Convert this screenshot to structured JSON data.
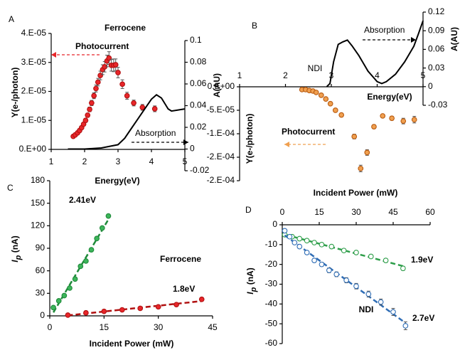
{
  "chart_data": [
    {
      "type": "scatter",
      "panel": "A",
      "title": "Ferrocene",
      "xlabel": "Energy(eV)",
      "ylabel": "Y(e-/photon)",
      "y2label": "A(AU)",
      "xlim": [
        1,
        5
      ],
      "xticks": [
        1,
        2,
        3,
        4,
        5
      ],
      "ylim": [
        0,
        4e-05
      ],
      "yticks": [
        {
          "value": 0,
          "label": "0.E+00"
        },
        {
          "value": 1e-05,
          "label": "1.E-05"
        },
        {
          "value": 2e-05,
          "label": "2.E-05"
        },
        {
          "value": 3e-05,
          "label": "3.E-05"
        },
        {
          "value": 4e-05,
          "label": "4.E-05"
        }
      ],
      "y2lim": [
        -0.02,
        0.1
      ],
      "y2ticks": [
        -0.02,
        0,
        0.02,
        0.04,
        0.06,
        0.08,
        0.1
      ],
      "series": [
        {
          "name": "Photocurrent",
          "style": "markers",
          "color": "#b01010",
          "marker_fill": "#e8262a",
          "x": [
            1.66,
            1.72,
            1.79,
            1.85,
            1.91,
            1.97,
            2.03,
            2.09,
            2.15,
            2.21,
            2.28,
            2.34,
            2.4,
            2.47,
            2.54,
            2.6,
            2.67,
            2.73,
            2.8,
            2.87,
            2.93,
            3.0,
            3.13,
            3.27,
            3.47,
            3.73,
            4.1
          ],
          "values": [
            4.5e-06,
            5e-06,
            5.7e-06,
            6.5e-06,
            7.5e-06,
            8.7e-06,
            1e-05,
            1.18e-05,
            1.38e-05,
            1.6e-05,
            1.85e-05,
            2.1e-05,
            2.32e-05,
            2.55e-05,
            2.75e-05,
            2.85e-05,
            3.05e-05,
            3.15e-05,
            2.9e-05,
            2.9e-05,
            2.92e-05,
            2.65e-05,
            2.25e-05,
            1.85e-05,
            1.6e-05,
            1.45e-05,
            1.4e-05
          ],
          "errors": [
            3e-07,
            3e-07,
            4e-07,
            4e-07,
            5e-07,
            5e-07,
            6e-07,
            7e-07,
            8e-07,
            9e-07,
            1e-06,
            1.2e-06,
            1.3e-06,
            1.5e-06,
            1.7e-06,
            1.8e-06,
            2e-06,
            2.2e-06,
            2e-06,
            2.2e-06,
            2e-06,
            1.8e-06,
            1.5e-06,
            1.2e-06,
            1e-06,
            1e-06,
            1e-06
          ]
        },
        {
          "name": "Absorption",
          "style": "line",
          "axis": "y2",
          "color": "#000000",
          "x": [
            1.5,
            2,
            2.5,
            3,
            3.2,
            3.4,
            3.6,
            3.8,
            4.0,
            4.15,
            4.3,
            4.4,
            4.5,
            4.6,
            4.8,
            5
          ],
          "values": [
            0,
            0,
            0.001,
            0.004,
            0.01,
            0.019,
            0.028,
            0.037,
            0.046,
            0.05,
            0.047,
            0.042,
            0.037,
            0.035,
            0.036,
            0.037
          ]
        }
      ]
    },
    {
      "type": "scatter",
      "panel": "B",
      "title": "NDI",
      "xlabel": "Energy(eV)",
      "ylabel": "Y(e-/photon)",
      "y2label": "A(AU)",
      "xlim": [
        1,
        5
      ],
      "xticks": [
        1,
        2,
        3,
        4,
        5
      ],
      "ylim": [
        -0.0002,
        0
      ],
      "yticks": [
        {
          "value": 0,
          "label": "0.E+00"
        },
        {
          "value": -5e-05,
          "label": "-5.E-05"
        },
        {
          "value": -0.0001,
          "label": "-1.E-04"
        },
        {
          "value": -0.00015,
          "label": "-2.E-04"
        },
        {
          "value": -0.0002,
          "label": "-2.E-04"
        }
      ],
      "y2lim": [
        -0.03,
        0.12
      ],
      "y2ticks": [
        -0.03,
        0,
        0.03,
        0.06,
        0.09,
        0.12
      ],
      "series": [
        {
          "name": "Photocurrent",
          "style": "markers",
          "color": "#b85a10",
          "marker_fill": "#f0a050",
          "x": [
            2.36,
            2.44,
            2.52,
            2.6,
            2.67,
            2.78,
            2.88,
            2.98,
            3.09,
            3.22,
            3.5,
            3.64,
            3.78,
            3.93,
            4.12,
            4.32,
            4.57,
            4.81
          ],
          "values": [
            -6e-06,
            -6e-06,
            -8e-06,
            -9e-06,
            -1.2e-05,
            -1.8e-05,
            -2.6e-05,
            -3.6e-05,
            -5e-05,
            -6e-05,
            -0.000106,
            -0.000174,
            -0.00014,
            -8.5e-05,
            -6.2e-05,
            -6.7e-05,
            -7.3e-05,
            -7e-05
          ],
          "errors": [
            1e-06,
            1e-06,
            1e-06,
            1e-06,
            1.5e-06,
            2e-06,
            2e-06,
            2.5e-06,
            3e-06,
            3e-06,
            5e-06,
            7e-06,
            6e-06,
            4e-06,
            3e-06,
            4e-06,
            6e-06,
            7e-06
          ]
        },
        {
          "name": "Absorption",
          "style": "line",
          "axis": "y2",
          "color": "#000000",
          "x": [
            2.9,
            2.97,
            3.05,
            3.15,
            3.25,
            3.35,
            3.45,
            3.6,
            3.8,
            4.0,
            4.1,
            4.2,
            4.4,
            4.6,
            4.8,
            4.9,
            5
          ],
          "values": [
            0,
            0.005,
            0.04,
            0.068,
            0.072,
            0.075,
            0.066,
            0.05,
            0.025,
            0.008,
            0.005,
            0.008,
            0.02,
            0.04,
            0.065,
            0.085,
            0.106
          ]
        }
      ]
    },
    {
      "type": "scatter",
      "panel": "C",
      "title": "Ferrocene",
      "xlabel": "Incident Power (mW)",
      "ylabel": [
        "I",
        "p",
        " (nA)"
      ],
      "xlim": [
        0,
        45
      ],
      "xticks": [
        0,
        15,
        30,
        45
      ],
      "ylim": [
        0,
        180
      ],
      "yticks": [
        0,
        30,
        60,
        90,
        120,
        150,
        180
      ],
      "series": [
        {
          "name": "2.41eV",
          "style": "markers",
          "fit": "linear",
          "color": "#1f8a3a",
          "marker_fill": "#3cb55a",
          "x": [
            1,
            2.5,
            4,
            5.5,
            7,
            8.5,
            10,
            11.5,
            13,
            14.5,
            16.2
          ],
          "values": [
            11,
            20,
            27,
            37,
            49,
            66,
            73,
            88,
            103,
            117,
            133
          ]
        },
        {
          "name": "1.8eV",
          "style": "markers",
          "fit": "linear",
          "color": "#b01010",
          "marker_fill": "#e8262a",
          "x": [
            5,
            10,
            15,
            20,
            25,
            30,
            35,
            42
          ],
          "values": [
            1,
            4,
            6,
            8,
            10,
            12,
            15,
            22
          ]
        }
      ]
    },
    {
      "type": "scatter",
      "panel": "D",
      "title": "NDI",
      "xlabel": "Incident Power (mW)",
      "ylabel": [
        "I",
        "p",
        " (nA)"
      ],
      "xlim": [
        0,
        60
      ],
      "xticks": [
        0,
        15,
        30,
        45,
        60
      ],
      "ylim": [
        -60,
        0
      ],
      "yticks": [
        -60,
        -50,
        -40,
        -30,
        -20,
        -10,
        0
      ],
      "series": [
        {
          "name": "1.9eV",
          "style": "markers",
          "fit": "linear",
          "color": "#2e9e4a",
          "marker_fill": "#ffffff",
          "x": [
            1,
            4,
            7,
            10,
            13,
            16,
            20,
            25,
            30,
            36,
            42,
            49
          ],
          "values": [
            -5,
            -6,
            -7,
            -8,
            -9,
            -10,
            -11,
            -13,
            -14,
            -16,
            -18,
            -22
          ],
          "errors": [
            0.5,
            0.5,
            0.5,
            0.6,
            0.6,
            0.6,
            0.7,
            0.7,
            0.8,
            0.8,
            0.9,
            1
          ]
        },
        {
          "name": "2.7eV",
          "style": "markers",
          "fit": "linear",
          "color": "#2f6db5",
          "marker_fill": "#ffffff",
          "x": [
            1,
            3,
            5,
            7,
            10,
            13,
            16,
            19,
            22,
            26,
            30,
            35,
            40,
            45,
            50
          ],
          "values": [
            -3,
            -6,
            -9,
            -11,
            -14,
            -18,
            -20,
            -23,
            -25,
            -28,
            -31,
            -35,
            -39,
            -44,
            -51
          ],
          "errors": [
            0.5,
            0.6,
            0.7,
            0.7,
            0.8,
            0.9,
            1,
            1.2,
            1.2,
            1.3,
            1.4,
            1.5,
            1.5,
            1.8,
            2
          ]
        }
      ]
    }
  ]
}
